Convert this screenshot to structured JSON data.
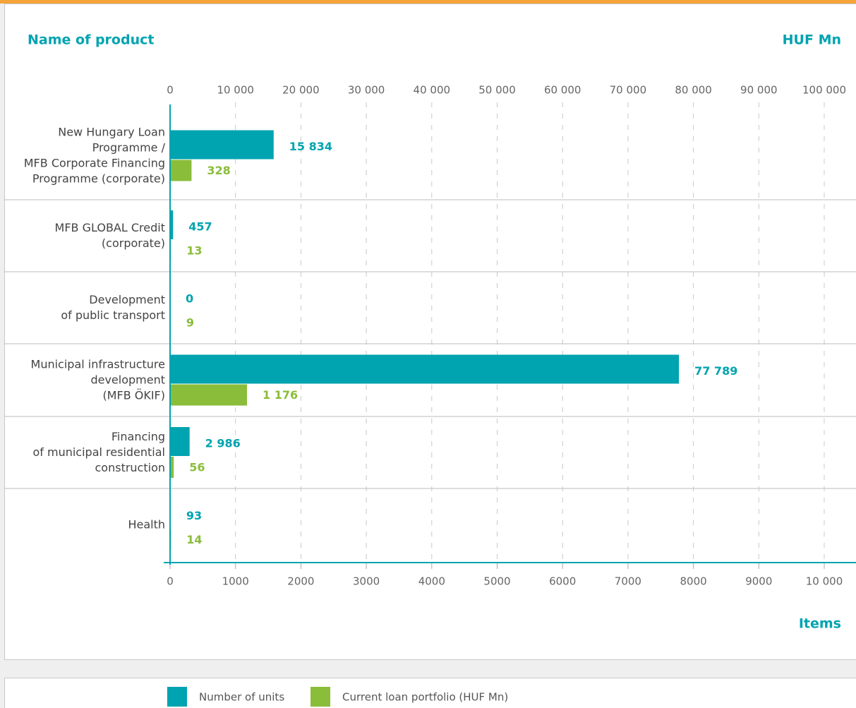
{
  "chart_data": {
    "type": "hbar",
    "y_axis_title": "Name of product",
    "x_axis_title": "HUF Mn",
    "x2_axis_title": "Items",
    "categories": [
      "New Hungary Loan\nProgramme /\nMFB Corporate Financing\nProgramme (corporate)",
      "MFB GLOBAL Credit\n(corporate)",
      "Development\nof public transport",
      "Municipal infrastructure\ndevelopment\n(MFB ÖKIF)",
      "Financing\nof municipal residential\nconstruction",
      "Health"
    ],
    "series": [
      {
        "name": "Number of units",
        "color": "#00a3b0",
        "values": [
          15834,
          457,
          0,
          77789,
          2986,
          93
        ],
        "value_labels": [
          "15 834",
          "457",
          "0",
          "77 789",
          "2 986",
          "93"
        ]
      },
      {
        "name": "Current loan portfolio (HUF Mn)",
        "color": "#8abd3a",
        "axis": "x2",
        "values": [
          328,
          13,
          9,
          1176,
          56,
          14
        ],
        "value_labels": [
          "328",
          "13",
          "9",
          "1 176",
          "56",
          "14"
        ]
      }
    ],
    "xlim": [
      0,
      100000
    ],
    "xticks": [
      0,
      {
        "value": 10000,
        "label": "10 000"
      },
      {
        "value": 20000,
        "label": "20 000"
      },
      {
        "value": 30000,
        "label": "30 000"
      },
      {
        "value": 40000,
        "label": "40 000"
      },
      {
        "value": 50000,
        "label": "50 000"
      },
      {
        "value": 60000,
        "label": "60 000"
      },
      {
        "value": 70000,
        "label": "70 000"
      },
      {
        "value": 80000,
        "label": "80 000"
      },
      {
        "value": 90000,
        "label": "90 000"
      },
      {
        "value": 100000,
        "label": "100 000"
      }
    ],
    "x2lim": [
      0,
      10000
    ],
    "x2ticks": [
      0,
      1000,
      2000,
      3000,
      4000,
      5000,
      6000,
      7000,
      8000,
      9000,
      {
        "value": 10000,
        "label": "10 000"
      }
    ],
    "grid": true
  }
}
